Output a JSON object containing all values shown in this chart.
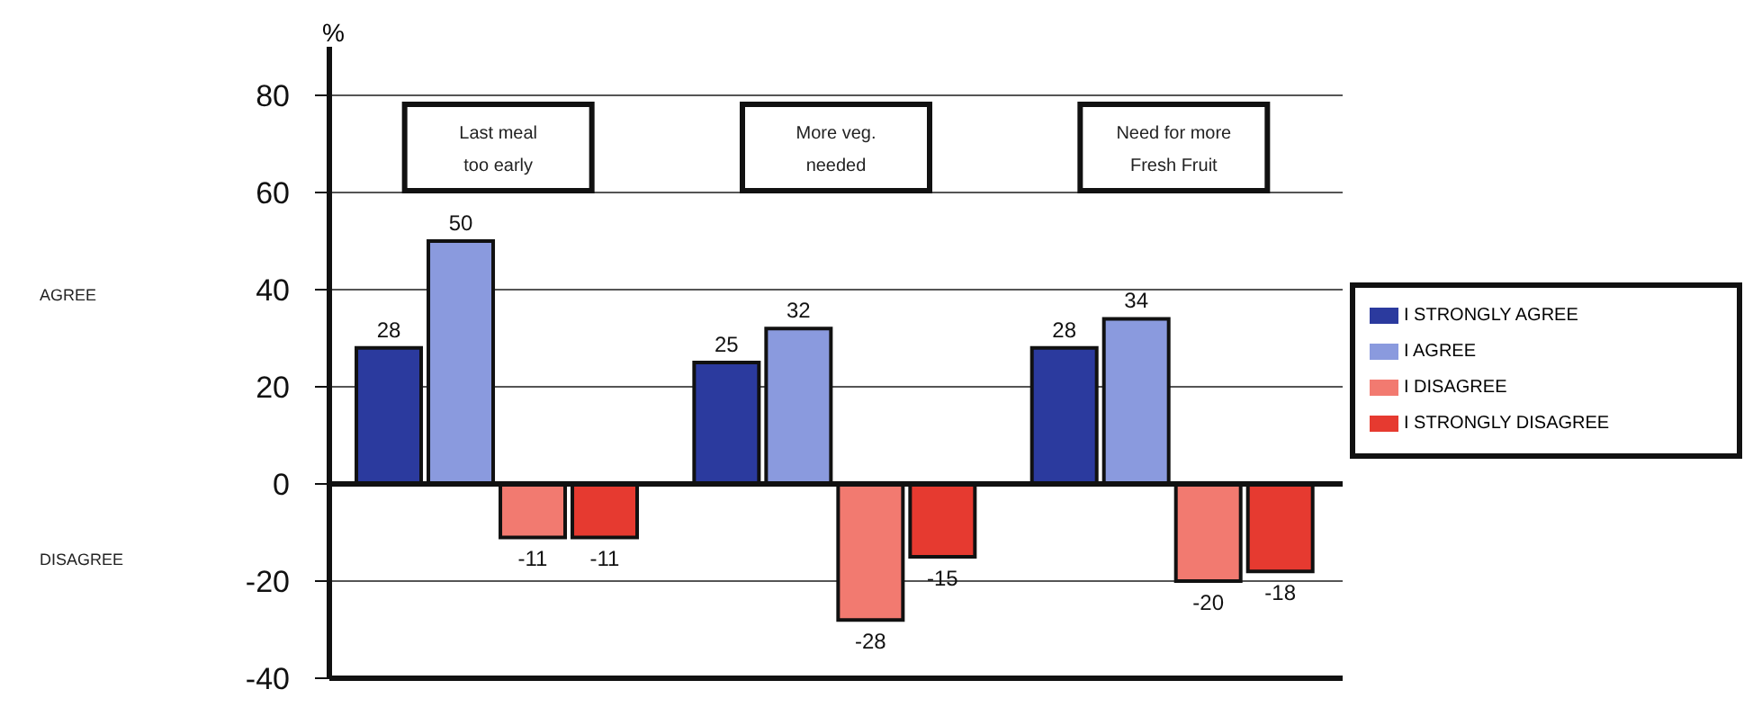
{
  "chart_data": {
    "type": "bar",
    "ylabel": "%",
    "categories": [
      "Last meal too early",
      "More veg. needed",
      "Need for more Fresh Fruit"
    ],
    "series": [
      {
        "name": "I STRONGLY AGREE",
        "color": "#2b3a9e",
        "values": [
          28,
          25,
          28
        ]
      },
      {
        "name": "I AGREE",
        "color": "#8a9ade",
        "values": [
          50,
          32,
          34
        ]
      },
      {
        "name": "I DISAGREE",
        "color": "#f27a70",
        "values": [
          -11,
          -28,
          -20
        ]
      },
      {
        "name": "I STRONGLY DISAGREE",
        "color": "#e63a30",
        "values": [
          -11,
          -15,
          -18
        ]
      }
    ],
    "ylim": [
      -40,
      90
    ],
    "yticks": [
      -40,
      -20,
      0,
      20,
      40,
      60,
      80
    ],
    "grid": "y",
    "legend": "right",
    "data_labels": true,
    "annotations": [
      "AGREE",
      "DISAGREE"
    ]
  }
}
